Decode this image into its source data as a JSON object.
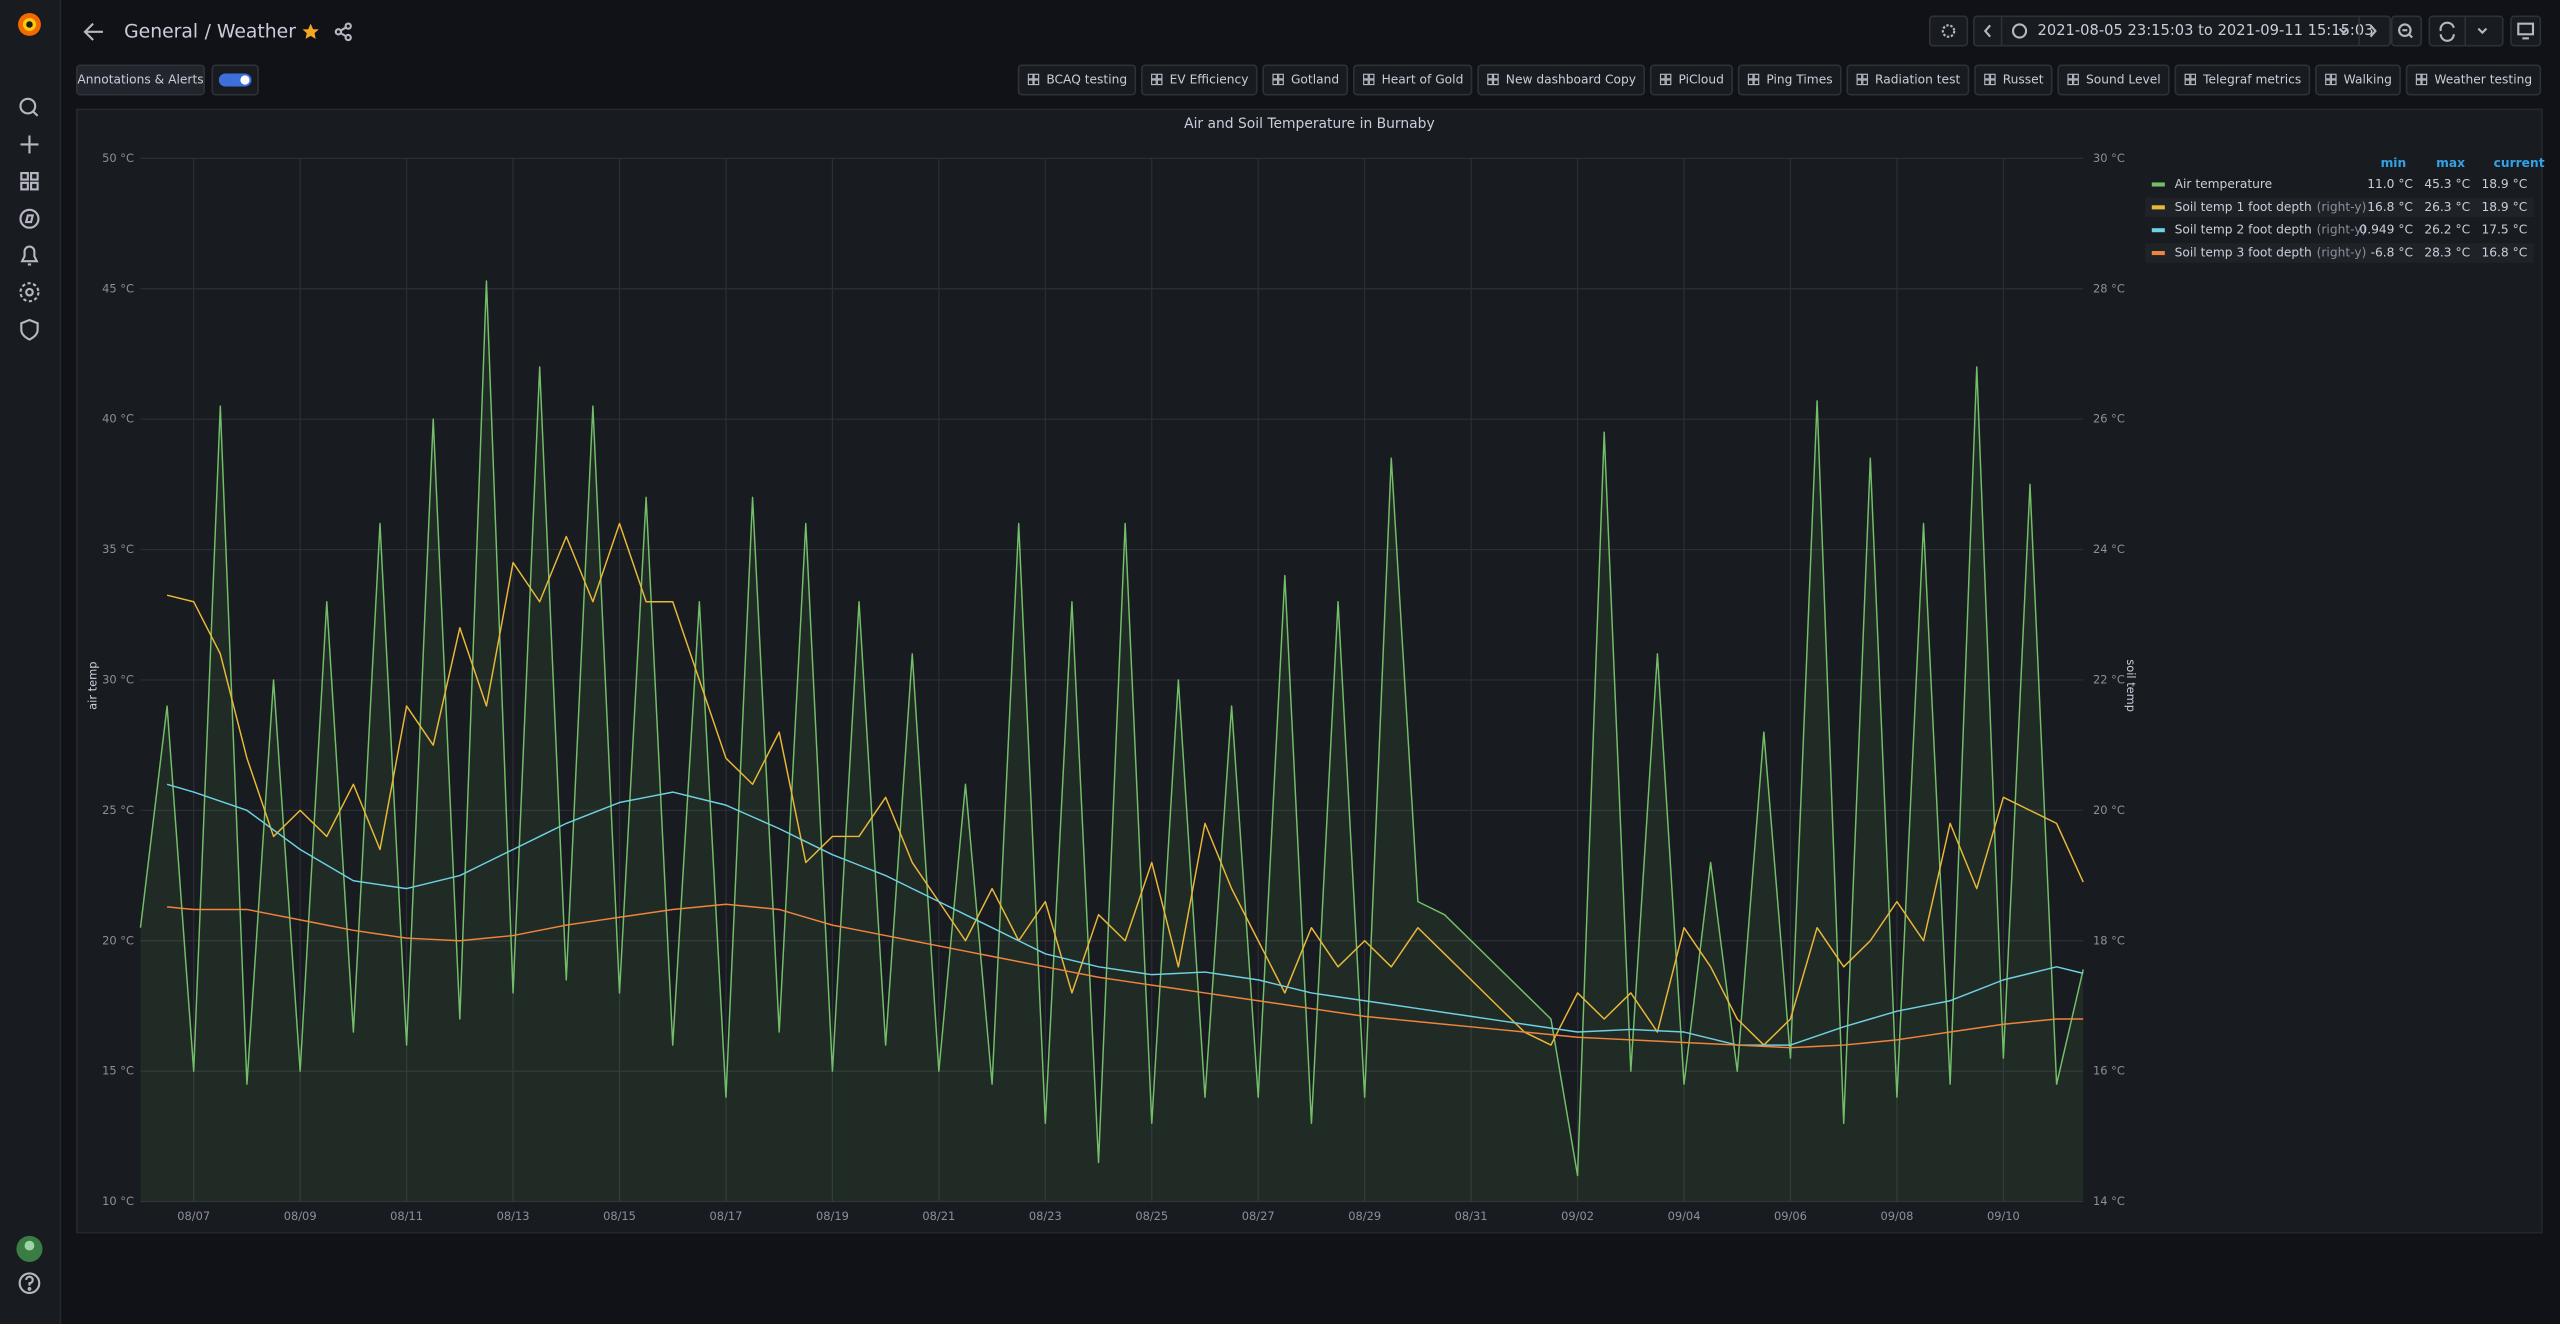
{
  "header": {
    "folder": "General",
    "title": "/ Weather",
    "time_range": "2021-08-05 23:15:03 to 2021-09-11 15:15:03"
  },
  "toolbar": {
    "annotations_button": "Annotations & Alerts",
    "dashboard_links": [
      "BCAQ testing",
      "EV Efficiency",
      "Gotland",
      "Heart of Gold",
      "New dashboard Copy",
      "PiCloud",
      "Ping Times",
      "Radiation test",
      "Russet",
      "Sound Level",
      "Telegraf metrics",
      "Walking",
      "Weather testing"
    ]
  },
  "chart_data": {
    "type": "line",
    "title": "Air and Soil Temperature in Burnaby",
    "y_label": "air temp",
    "y2_label": "soil temp",
    "grid": true,
    "legend": {
      "position": "right",
      "columns": [
        "min",
        "max",
        "current"
      ],
      "y2_tag": "(right-y)"
    },
    "ylim": [
      10,
      50
    ],
    "yticks": [
      {
        "value": 10,
        "label": "10 °C"
      },
      {
        "value": 15,
        "label": "15 °C"
      },
      {
        "value": 20,
        "label": "20 °C"
      },
      {
        "value": 25,
        "label": "25 °C"
      },
      {
        "value": 30,
        "label": "30 °C"
      },
      {
        "value": 35,
        "label": "35 °C"
      },
      {
        "value": 40,
        "label": "40 °C"
      },
      {
        "value": 45,
        "label": "45 °C"
      },
      {
        "value": 50,
        "label": "50 °C"
      }
    ],
    "y2lim": [
      14,
      30
    ],
    "y2ticks": [
      {
        "value": 14,
        "label": "14 °C"
      },
      {
        "value": 16,
        "label": "16 °C"
      },
      {
        "value": 18,
        "label": "18 °C"
      },
      {
        "value": 20,
        "label": "20 °C"
      },
      {
        "value": 22,
        "label": "22 °C"
      },
      {
        "value": 24,
        "label": "24 °C"
      },
      {
        "value": 26,
        "label": "26 °C"
      },
      {
        "value": 28,
        "label": "28 °C"
      },
      {
        "value": 30,
        "label": "30 °C"
      }
    ],
    "categories": [
      null,
      null,
      "08/07",
      null,
      null,
      null,
      "08/09",
      null,
      null,
      null,
      "08/11",
      null,
      null,
      null,
      "08/13",
      null,
      null,
      null,
      "08/15",
      null,
      null,
      null,
      "08/17",
      null,
      null,
      null,
      "08/19",
      null,
      null,
      null,
      "08/21",
      null,
      null,
      null,
      "08/23",
      null,
      null,
      null,
      "08/25",
      null,
      null,
      null,
      "08/27",
      null,
      null,
      null,
      "08/29",
      null,
      null,
      null,
      "08/31",
      null,
      null,
      null,
      "09/02",
      null,
      null,
      null,
      "09/04",
      null,
      null,
      null,
      "09/06",
      null,
      null,
      null,
      "09/08",
      null,
      null,
      null,
      "09/10",
      null,
      null,
      null
    ],
    "series": [
      {
        "name": "Air temperature",
        "color": "#73bf69",
        "fill": true,
        "stats": [
          "11.0 °C",
          "45.3 °C",
          "18.9 °C"
        ],
        "values": [
          20.5,
          29,
          15,
          40.5,
          14.5,
          30,
          15,
          33,
          16.5,
          36,
          16,
          40,
          17,
          45.3,
          18,
          42,
          18.5,
          40.5,
          18,
          37,
          16,
          33,
          14,
          37,
          16.5,
          36,
          15,
          33,
          16,
          31,
          15,
          26,
          14.5,
          36,
          13,
          33,
          11.5,
          36,
          13,
          30,
          14,
          29,
          14,
          34,
          13,
          33,
          14,
          38.5,
          21.5,
          21,
          20,
          19,
          18,
          17,
          11,
          39.5,
          15,
          31,
          14.5,
          23,
          15,
          28,
          15.5,
          40.7,
          13,
          38.5,
          14,
          36,
          14.5,
          42,
          15.5,
          37.5,
          14.5,
          18.9
        ]
      },
      {
        "name": "Soil temp 1 foot depth",
        "color": "#eab839",
        "axis": "y2",
        "stats": [
          "16.8 °C",
          "26.3 °C",
          "18.9 °C"
        ],
        "values": [
          null,
          23.3,
          23.2,
          22.4,
          20.8,
          19.6,
          20,
          19.6,
          20.4,
          19.4,
          21.6,
          21.0,
          22.8,
          21.6,
          23.8,
          23.2,
          24.2,
          23.2,
          24.4,
          23.2,
          23.2,
          22,
          20.8,
          20.4,
          21.2,
          19.2,
          19.6,
          19.6,
          20.2,
          19.2,
          18.6,
          18,
          18.8,
          18,
          18.6,
          17.2,
          18.4,
          18,
          19.2,
          17.6,
          19.8,
          18.8,
          18,
          17.2,
          18.2,
          17.6,
          18,
          17.6,
          18.2,
          17.8,
          17.4,
          17,
          16.6,
          16.4,
          17.2,
          16.8,
          17.2,
          16.6,
          18.2,
          17.6,
          16.8,
          16.4,
          16.8,
          18.2,
          17.6,
          18,
          18.6,
          18,
          19.8,
          18.8,
          20.2,
          20,
          19.8,
          18.9
        ]
      },
      {
        "name": "Soil temp 2 foot depth",
        "color": "#6ed0e0",
        "axis": "y2",
        "stats": [
          "0.949 °C",
          "26.2 °C",
          "17.5 °C"
        ],
        "values": [
          null,
          20.4,
          20.28,
          20.14,
          20.0,
          19.7,
          19.4,
          19.16,
          18.92,
          18.86,
          18.8,
          18.9,
          19.0,
          19.2,
          19.4,
          19.6,
          19.8,
          19.96,
          20.12,
          20.2,
          20.28,
          20.18,
          20.08,
          19.9,
          19.72,
          19.52,
          19.32,
          19.16,
          19.0,
          18.8,
          18.6,
          18.4,
          18.2,
          18.0,
          17.8,
          17.7,
          17.6,
          17.54,
          17.48,
          17.5,
          17.52,
          17.46,
          17.4,
          17.3,
          17.2,
          17.14,
          17.08,
          17.02,
          16.96,
          16.9,
          16.84,
          16.78,
          16.72,
          16.66,
          16.6,
          16.62,
          16.64,
          16.62,
          16.6,
          16.5,
          16.4,
          16.4,
          16.4,
          16.54,
          16.68,
          16.8,
          16.92,
          17.0,
          17.08,
          17.24,
          17.4,
          17.5,
          17.6,
          17.5
        ]
      },
      {
        "name": "Soil temp 3 foot depth",
        "color": "#ef843c",
        "axis": "y2",
        "stats": [
          "-6.8 °C",
          "28.3 °C",
          "16.8 °C"
        ],
        "values": [
          null,
          18.52,
          18.48,
          18.48,
          18.48,
          18.4,
          18.32,
          18.24,
          18.16,
          18.1,
          18.04,
          18.02,
          18.0,
          18.04,
          18.08,
          18.16,
          18.24,
          18.3,
          18.36,
          18.42,
          18.48,
          18.52,
          18.56,
          18.52,
          18.48,
          18.36,
          18.24,
          18.16,
          18.08,
          18.0,
          17.92,
          17.84,
          17.76,
          17.68,
          17.6,
          17.52,
          17.44,
          17.38,
          17.32,
          17.26,
          17.2,
          17.14,
          17.08,
          17.02,
          16.96,
          16.9,
          16.84,
          16.8,
          16.76,
          16.72,
          16.68,
          16.64,
          16.6,
          16.56,
          16.52,
          16.5,
          16.48,
          16.46,
          16.44,
          16.42,
          16.4,
          16.38,
          16.36,
          16.38,
          16.4,
          16.44,
          16.48,
          16.54,
          16.6,
          16.66,
          16.72,
          16.76,
          16.8,
          16.8
        ]
      }
    ]
  }
}
